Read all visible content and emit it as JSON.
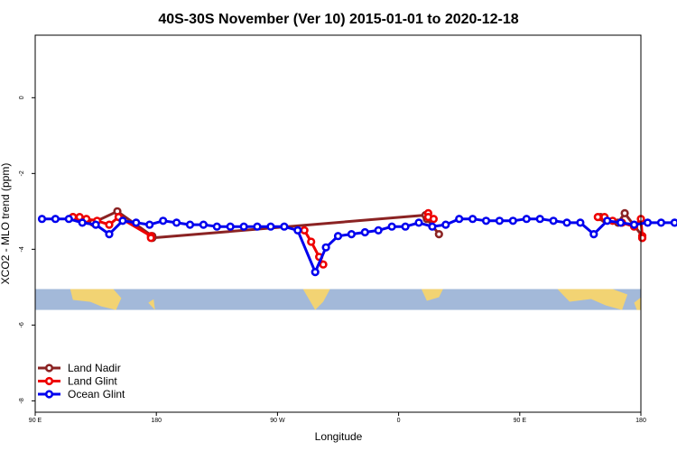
{
  "chart_data": {
    "type": "line",
    "title": "40S-30S November (Ver 10)   2015-01-01 to 2020-12-18",
    "xlabel": "Longitude",
    "ylabel": "XCO2 - MLO trend (ppm)",
    "xlim": [
      0,
      450
    ],
    "ylim": [
      -8.3,
      1.65
    ],
    "x_ticks": [
      {
        "value": 0,
        "label": "90 E"
      },
      {
        "value": 90,
        "label": "180"
      },
      {
        "value": 180,
        "label": "90 W"
      },
      {
        "value": 270,
        "label": "0"
      },
      {
        "value": 360,
        "label": "90 E"
      },
      {
        "value": 450,
        "label": "180"
      }
    ],
    "y_ticks": [
      {
        "value": 0,
        "label": "0"
      },
      {
        "value": -2,
        "label": "-2"
      },
      {
        "value": -4,
        "label": "-4"
      },
      {
        "value": -6,
        "label": "-6"
      },
      {
        "value": -8,
        "label": "-8"
      }
    ],
    "map_strip": {
      "ymin": -5.6,
      "ymax": -5.05,
      "ocean_color": "#a3b9d9",
      "land_color": "#f2d373"
    },
    "grid": false,
    "legend_position": "bottom-left",
    "series": [
      {
        "name": "Land Nadir",
        "color": "#8b2323",
        "x": [
          28,
          33,
          43,
          61,
          87,
          87,
          290,
          291,
          300,
          420,
          423,
          433,
          438,
          451,
          451
        ],
        "y": [
          -3.15,
          -3.2,
          -3.3,
          -3.0,
          -3.65,
          -3.7,
          -3.1,
          -3.2,
          -3.6,
          -3.15,
          -3.2,
          -3.3,
          -3.05,
          -3.65,
          -3.7
        ],
        "breaks_after": [
          4,
          8
        ]
      },
      {
        "name": "Land Glint",
        "color": "#ee0000",
        "x": [
          28,
          33,
          38,
          46,
          55,
          62,
          86,
          86,
          200,
          205,
          211,
          214,
          292,
          292,
          296,
          418,
          423,
          429,
          436,
          445,
          450,
          451,
          451
        ],
        "y": [
          -3.15,
          -3.15,
          -3.2,
          -3.25,
          -3.35,
          -3.15,
          -3.65,
          -3.7,
          -3.5,
          -3.8,
          -4.2,
          -4.4,
          -3.05,
          -3.15,
          -3.2,
          -3.15,
          -3.15,
          -3.25,
          -3.3,
          -3.4,
          -3.2,
          -3.65,
          -3.7
        ],
        "breaks_after": [
          7,
          11,
          14
        ]
      },
      {
        "name": "Ocean Glint",
        "color": "#0000ee",
        "x": [
          5,
          15,
          25,
          35,
          45,
          55,
          65,
          75,
          85,
          95,
          105,
          115,
          125,
          135,
          145,
          155,
          165,
          175,
          185,
          195,
          208,
          216,
          225,
          235,
          245,
          255,
          265,
          275,
          285,
          295,
          305,
          315,
          325,
          335,
          345,
          355,
          365,
          375,
          385,
          395,
          405,
          415,
          425,
          435,
          445,
          455,
          465,
          475,
          485
        ],
        "y": [
          -3.2,
          -3.2,
          -3.2,
          -3.3,
          -3.35,
          -3.6,
          -3.25,
          -3.3,
          -3.35,
          -3.25,
          -3.3,
          -3.35,
          -3.35,
          -3.4,
          -3.4,
          -3.4,
          -3.4,
          -3.4,
          -3.4,
          -3.5,
          -4.6,
          -3.95,
          -3.65,
          -3.6,
          -3.55,
          -3.5,
          -3.4,
          -3.4,
          -3.3,
          -3.4,
          -3.35,
          -3.2,
          -3.2,
          -3.25,
          -3.25,
          -3.25,
          -3.2,
          -3.2,
          -3.25,
          -3.3,
          -3.3,
          -3.6,
          -3.25,
          -3.3,
          -3.35,
          -3.3,
          -3.3,
          -3.3,
          -3.3
        ]
      }
    ]
  }
}
